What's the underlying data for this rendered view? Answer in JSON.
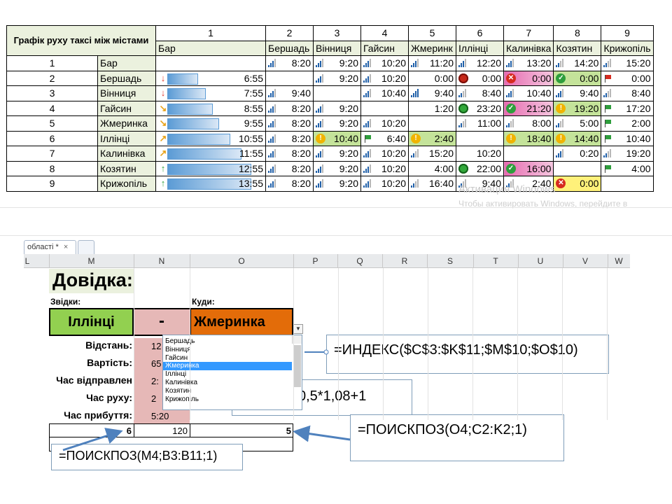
{
  "table": {
    "title": "Графік руху таксі між містами",
    "col_numbers": [
      "1",
      "2",
      "3",
      "4",
      "5",
      "6",
      "7",
      "8",
      "9"
    ],
    "col_names": [
      "Бар",
      "Бершадь",
      "Вінниця",
      "Гайсин",
      "Жмеринк",
      "Іллінці",
      "Калинівка",
      "Козятин",
      "Крижопіль"
    ],
    "rows": [
      {
        "n": "1",
        "city": "Бар",
        "cells": [
          "",
          "8:20",
          "9:20",
          "10:20",
          "11:20",
          "12:20",
          "13:20",
          "14:20",
          "15:20"
        ]
      },
      {
        "n": "2",
        "city": "Бершадь",
        "cells": [
          "6:55",
          "",
          "9:20",
          "10:20",
          "0:00",
          "0:00",
          "0:00",
          "0:00",
          "0:00"
        ]
      },
      {
        "n": "3",
        "city": "Вінниця",
        "cells": [
          "7:55",
          "9:40",
          "",
          "10:40",
          "9:40",
          "8:40",
          "10:40",
          "9:40",
          "8:40"
        ]
      },
      {
        "n": "4",
        "city": "Гайсин",
        "cells": [
          "8:55",
          "8:20",
          "9:20",
          "",
          "1:20",
          "23:20",
          "21:20",
          "19:20",
          "17:20"
        ]
      },
      {
        "n": "5",
        "city": "Жмеринка",
        "cells": [
          "9:55",
          "8:20",
          "9:20",
          "10:20",
          "",
          "11:00",
          "8:00",
          "5:00",
          "2:00"
        ]
      },
      {
        "n": "6",
        "city": "Іллінці",
        "cells": [
          "10:55",
          "8:20",
          "10:40",
          "6:40",
          "2:40",
          "",
          "18:40",
          "14:40",
          "10:40"
        ]
      },
      {
        "n": "7",
        "city": "Калинівка",
        "cells": [
          "11:55",
          "8:20",
          "9:20",
          "10:20",
          "15:20",
          "10:20",
          "",
          "0:20",
          "19:20"
        ]
      },
      {
        "n": "8",
        "city": "Козятин",
        "cells": [
          "12:55",
          "8:20",
          "9:20",
          "10:20",
          "4:00",
          "22:00",
          "16:00",
          "",
          "4:00"
        ]
      },
      {
        "n": "9",
        "city": "Крижопіль",
        "cells": [
          "13:55",
          "8:20",
          "9:20",
          "10:20",
          "16:40",
          "9:40",
          "2:40",
          "0:00",
          ""
        ]
      }
    ]
  },
  "watermark": {
    "line1": "Активация Windows",
    "line2": "Чтобы активировать Windows, перейдите в"
  },
  "excel": {
    "tab_label": "області *",
    "tab_close": "×",
    "columns": [
      "L",
      "M",
      "N",
      "O",
      "P",
      "Q",
      "R",
      "S",
      "T",
      "U",
      "V",
      "W"
    ],
    "title": "Довідка:",
    "from_label": "Звідки:",
    "to_label": "Куди:",
    "from_value": "Іллінці",
    "dash": "-",
    "to_value": "Жмеринка",
    "labels": [
      "Відстань:",
      "Вартість:",
      "Час відправлен",
      "Час руху:",
      "Час прибуття:"
    ],
    "values": [
      "12",
      "65",
      "2:",
      "2",
      "5:20"
    ],
    "bottom_row": {
      "m": "6",
      "n": "120",
      "o": "5"
    },
    "dropdown": [
      "Бершадь",
      "Вінниця",
      "Гайсин",
      "Жмеринка",
      "Іллінці",
      "Калинівка",
      "Козятин",
      "Крижопіль"
    ],
    "dropdown_selected": "Жмеринка"
  },
  "callouts": {
    "index": "=ИНДЕКС($C$3:$K$11;$M$10;$O$10)",
    "partial": "0,5*1,08+1",
    "match_o": "=ПОИСКПОЗ(O4;C2:K2;1)",
    "match_m": "=ПОИСКПОЗ(M4;B3:B11;1)"
  }
}
